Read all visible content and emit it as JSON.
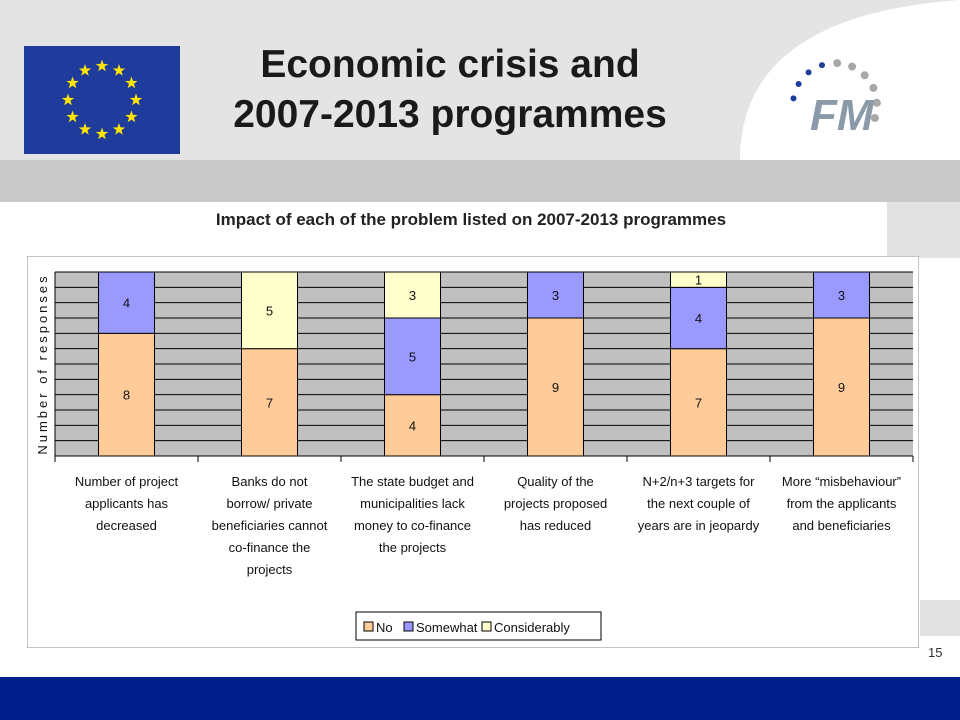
{
  "slide": {
    "title_line1": "Economic crisis and",
    "title_line2": "2007-2013 programmes",
    "subtitle": "Impact of each of the problem listed on 2007-2013 programmes",
    "number": "15",
    "logo_text": "FM"
  },
  "colors": {
    "no": "#ffcc99",
    "somewhat": "#9999ff",
    "considerably": "#ffffcc",
    "grid": "#000000",
    "plot_bg": "#c0c0c0",
    "bottom_bar": "#001e8c",
    "flag_blue": "#1f3b9c",
    "flag_star": "#ffe500"
  },
  "chart_data": {
    "type": "bar",
    "stacked": true,
    "title": "Impact of each of the problem listed on 2007-2013 programmes",
    "ylabel": "Number of responses",
    "xlabel": "",
    "ylim": [
      0,
      12
    ],
    "grid": true,
    "legend_position": "bottom-right",
    "categories": [
      [
        "Number of project",
        "applicants has",
        "decreased"
      ],
      [
        "Banks do not",
        "borrow/ private",
        "beneficiaries cannot",
        "co-finance the",
        "projects"
      ],
      [
        "The state budget and",
        "municipalities lack",
        "money to co-finance",
        "the projects"
      ],
      [
        "Quality of the",
        "projects proposed",
        "has reduced"
      ],
      [
        "N+2/n+3 targets for",
        "the next couple of",
        "years are in jeopardy"
      ],
      [
        "More “misbehaviour”",
        "from the applicants",
        "and beneficiaries"
      ]
    ],
    "series": [
      {
        "name": "No",
        "values": [
          8,
          7,
          4,
          9,
          7,
          9
        ]
      },
      {
        "name": "Somewhat",
        "values": [
          4,
          0,
          5,
          3,
          4,
          3
        ]
      },
      {
        "name": "Considerably",
        "values": [
          0,
          5,
          3,
          0,
          1,
          0
        ]
      }
    ]
  }
}
